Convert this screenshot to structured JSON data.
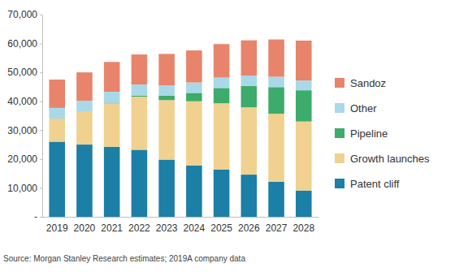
{
  "chart_data": {
    "type": "bar",
    "stacked": true,
    "legend": "right",
    "grid": false,
    "categories": [
      "2019",
      "2020",
      "2021",
      "2022",
      "2023",
      "2024",
      "2025",
      "2026",
      "2027",
      "2028"
    ],
    "series": [
      {
        "name": "Patent cliff",
        "color": "#1b7fa6",
        "values": [
          26000,
          25000,
          24200,
          23200,
          19800,
          17800,
          16400,
          14600,
          12100,
          9100
        ]
      },
      {
        "name": "Growth launches",
        "color": "#f0d18f",
        "values": [
          8000,
          11300,
          15100,
          18400,
          20600,
          22200,
          22900,
          23300,
          23600,
          23900
        ]
      },
      {
        "name": "Pipeline",
        "color": "#3dab6c",
        "values": [
          0,
          0,
          200,
          400,
          1600,
          2900,
          5300,
          7400,
          9200,
          10800
        ]
      },
      {
        "name": "Other",
        "color": "#a9d9e9",
        "values": [
          3700,
          3900,
          3800,
          3800,
          3500,
          3600,
          3600,
          3600,
          3600,
          3400
        ]
      },
      {
        "name": "Sandoz",
        "color": "#e8846b",
        "values": [
          9800,
          9800,
          10300,
          10400,
          10900,
          11100,
          11600,
          12200,
          12900,
          13800
        ]
      }
    ],
    "ylim": [
      0,
      70000
    ],
    "yticks": [
      {
        "value": 0,
        "label": "-"
      },
      {
        "value": 10000,
        "label": "10,000"
      },
      {
        "value": 20000,
        "label": "20,000"
      },
      {
        "value": 30000,
        "label": "30,000"
      },
      {
        "value": 40000,
        "label": "40,000"
      },
      {
        "value": 50000,
        "label": "50,000"
      },
      {
        "value": 60000,
        "label": "60,000"
      },
      {
        "value": 70000,
        "label": "70,000"
      }
    ],
    "annotations": [
      "Source: Morgan Stanley Research estimates; 2019A company data"
    ]
  }
}
